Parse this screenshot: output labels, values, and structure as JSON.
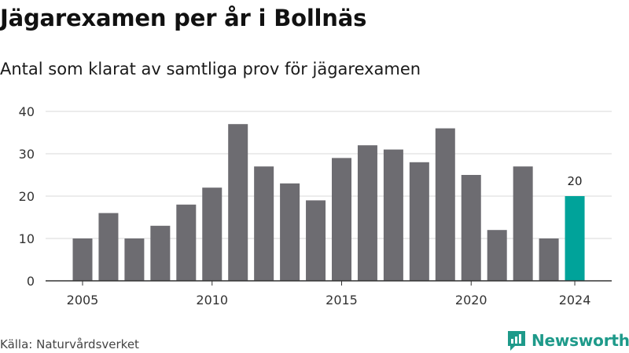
{
  "header": {
    "title": "Jägarexamen per år i Bollnäs",
    "subtitle": "Antal som klarat av samtliga prov för jägarexamen"
  },
  "footer": {
    "source": "Källa: Naturvårdsverket",
    "brand": "Newsworthy"
  },
  "colors": {
    "bar": "#6d6c71",
    "highlight": "#00a39a",
    "grid": "#d9d9d9",
    "axis": "#333333",
    "brand": "#1e9a8a"
  },
  "chart_data": {
    "type": "bar",
    "title": "Jägarexamen per år i Bollnäs",
    "subtitle": "Antal som klarat av samtliga prov för jägarexamen",
    "xlabel": "",
    "ylabel": "",
    "categories": [
      2005,
      2006,
      2007,
      2008,
      2009,
      2010,
      2011,
      2012,
      2013,
      2014,
      2015,
      2016,
      2017,
      2018,
      2019,
      2020,
      2021,
      2022,
      2023,
      2024
    ],
    "values": [
      10,
      16,
      10,
      13,
      18,
      22,
      37,
      27,
      23,
      19,
      29,
      32,
      31,
      28,
      36,
      25,
      12,
      27,
      10,
      20
    ],
    "ylim": [
      0,
      40
    ],
    "yticks": [
      0,
      10,
      20,
      30,
      40
    ],
    "xticks": [
      2005,
      2010,
      2015,
      2020,
      2024
    ],
    "highlight_category": 2024,
    "data_labels": [
      {
        "category": 2024,
        "text": "20"
      }
    ],
    "grid": true,
    "legend": "none"
  }
}
